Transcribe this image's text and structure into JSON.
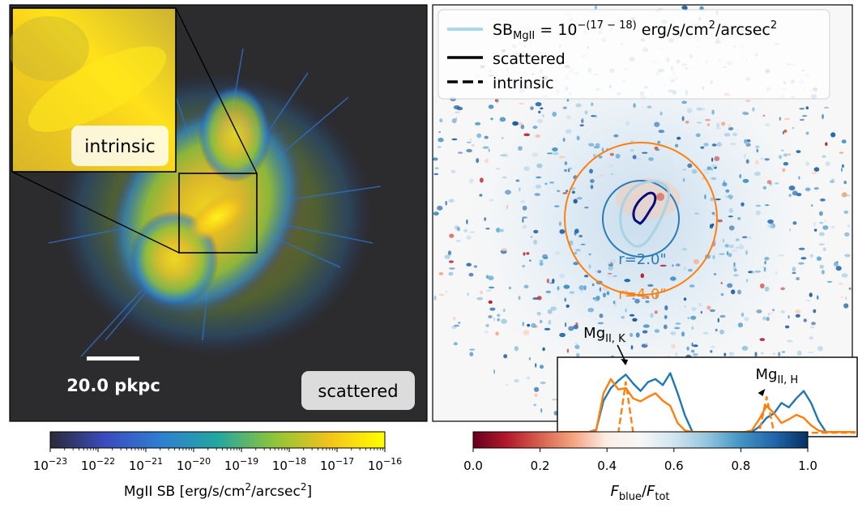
{
  "chart_data": [
    {
      "type": "heatmap",
      "panel": "left",
      "description": "MgII surface-brightness map",
      "inset_label": "intrinsic",
      "panel_label": "scattered",
      "scalebar_label": "20.0 pkpc",
      "scalebar_value_pkpc": 20.0,
      "colorbar": {
        "scale": "log",
        "range": [
          1e-23,
          1e-16
        ],
        "ticks": [
          {
            "base": "10",
            "exp": "−23"
          },
          {
            "base": "10",
            "exp": "−22"
          },
          {
            "base": "10",
            "exp": "−21"
          },
          {
            "base": "10",
            "exp": "−20"
          },
          {
            "base": "10",
            "exp": "−19"
          },
          {
            "base": "10",
            "exp": "−18"
          },
          {
            "base": "10",
            "exp": "−17"
          },
          {
            "base": "10",
            "exp": "−16"
          }
        ],
        "label": {
          "main": "MgII SB [erg/s/cm",
          "sup": "2",
          "mid": "/arcsec",
          "sup2": "2",
          "end": "]"
        },
        "colors": [
          "#2b2b36",
          "#3b4cc0",
          "#2f7fd0",
          "#24a6a0",
          "#8cc43a",
          "#f2c21b",
          "#ffff00"
        ]
      }
    },
    {
      "type": "heatmap",
      "panel": "right",
      "description": "Blue-to-total flux ratio map",
      "legend": {
        "contour": {
          "prefix": "SB",
          "sub": "MgII",
          "eq": " = 10",
          "sup": "−(17 − 18)",
          "unit": "  erg/s/cm",
          "unit_sup": "2",
          "unit_end": "/arcsec",
          "unit_sup2": "2"
        },
        "solid": "scattered",
        "dashed": "intrinsic"
      },
      "apertures": [
        {
          "label": "r=2.0\"",
          "radius_arcsec": 2.0,
          "color": "#2b7bba"
        },
        {
          "label": "r=4.0\"",
          "radius_arcsec": 4.0,
          "color": "#ff7f0e"
        }
      ],
      "colorbar": {
        "range": [
          0.0,
          1.0
        ],
        "ticks": [
          "0.0",
          "0.2",
          "0.4",
          "0.6",
          "0.8",
          "1.0"
        ],
        "label": {
          "f1": "F",
          "s1": "blue",
          "slash": "/",
          "f2": "F",
          "s2": "tot"
        },
        "colors": [
          "#67001f",
          "#b2182b",
          "#d6604d",
          "#f4a582",
          "#fbeee6",
          "#f7f7f7",
          "#d1e5f0",
          "#92c5de",
          "#4393c3",
          "#2166ac",
          "#053061"
        ]
      }
    },
    {
      "type": "line",
      "panel": "inset-spectrum",
      "x": [
        0,
        1,
        2,
        3,
        4,
        5,
        6,
        7,
        8,
        9,
        10,
        11,
        12,
        13,
        14,
        15,
        16,
        17,
        18,
        19,
        20,
        21,
        22,
        23,
        24,
        25,
        26,
        27,
        28,
        29,
        30,
        31,
        32,
        33,
        34,
        35,
        36,
        37,
        38,
        39,
        40
      ],
      "xlim": [
        0,
        40
      ],
      "ylim": [
        0,
        1
      ],
      "annotations": [
        {
          "text": "Mg",
          "sub": "II, K",
          "x": 9.2
        },
        {
          "text": "Mg",
          "sub": "II, H",
          "x": 26.5
        }
      ],
      "series": [
        {
          "name": "blue scattered",
          "color": "#1f77b4",
          "dash": "solid",
          "values": [
            0.03,
            0.03,
            0.03,
            0.03,
            0.03,
            0.06,
            0.45,
            0.62,
            0.72,
            0.8,
            0.68,
            0.58,
            0.7,
            0.74,
            0.66,
            0.82,
            0.55,
            0.25,
            0.03,
            0.03,
            0.03,
            0.03,
            0.03,
            0.03,
            0.03,
            0.03,
            0.03,
            0.1,
            0.22,
            0.28,
            0.42,
            0.36,
            0.48,
            0.58,
            0.42,
            0.18,
            0.03,
            0.03,
            0.03,
            0.03,
            0.03
          ]
        },
        {
          "name": "orange scattered",
          "color": "#ff7f0e",
          "dash": "solid",
          "values": [
            0.03,
            0.03,
            0.03,
            0.03,
            0.03,
            0.05,
            0.55,
            0.74,
            0.6,
            0.62,
            0.48,
            0.44,
            0.5,
            0.55,
            0.45,
            0.38,
            0.15,
            0.05,
            0.03,
            0.03,
            0.03,
            0.03,
            0.03,
            0.03,
            0.03,
            0.03,
            0.05,
            0.2,
            0.38,
            0.28,
            0.15,
            0.2,
            0.26,
            0.22,
            0.12,
            0.05,
            0.03,
            0.03,
            0.03,
            0.03,
            0.03
          ]
        },
        {
          "name": "intrinsic",
          "color": "#ff7f0e",
          "dash": "dashed",
          "values": [
            0.02,
            0.02,
            0.02,
            0.02,
            0.02,
            0.02,
            0.02,
            0.02,
            0.02,
            0.7,
            0.02,
            0.02,
            0.02,
            0.02,
            0.02,
            0.02,
            0.02,
            0.02,
            0.02,
            0.02,
            0.02,
            0.02,
            0.02,
            0.02,
            0.02,
            0.02,
            0.02,
            0.02,
            0.5,
            0.02,
            0.02,
            0.02,
            0.02,
            0.02,
            0.02,
            0.02,
            0.02,
            0.02,
            0.02,
            0.02,
            0.02
          ]
        }
      ]
    }
  ]
}
